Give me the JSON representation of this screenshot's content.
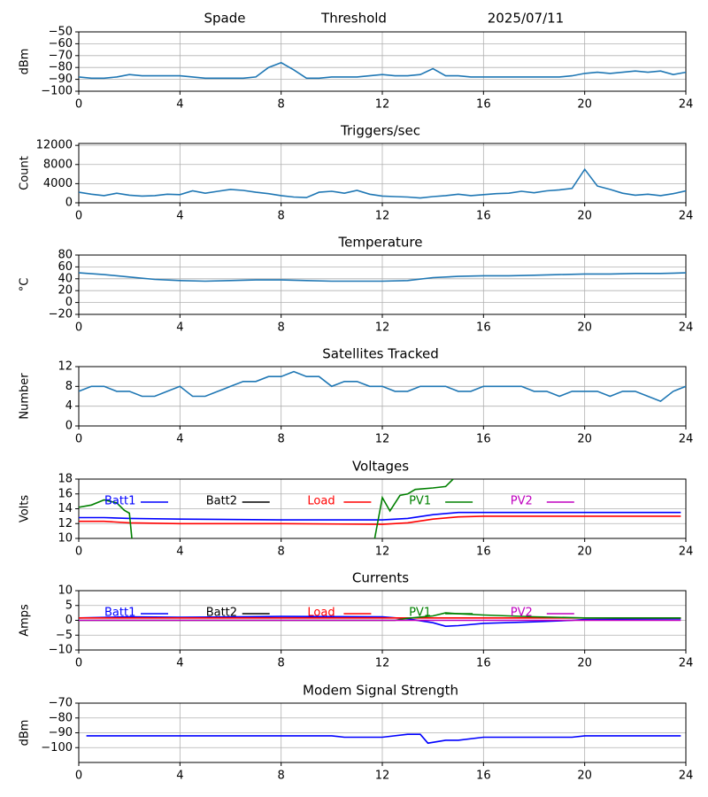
{
  "chart_data": [
    {
      "type": "line",
      "titles": [
        "Spade",
        "Threshold",
        "2025/07/11"
      ],
      "ylabel": "dBm",
      "color": "#1f77b4",
      "grid": true,
      "x": [
        0,
        0.5,
        1,
        1.5,
        2,
        2.5,
        3,
        3.5,
        4,
        4.5,
        5,
        5.5,
        6,
        6.5,
        7,
        7.5,
        8,
        8.5,
        9,
        9.5,
        10,
        10.5,
        11,
        11.5,
        12,
        12.5,
        13,
        13.5,
        14,
        14.5,
        15,
        15.5,
        16,
        16.5,
        17,
        17.5,
        18,
        18.5,
        19,
        19.5,
        20,
        20.5,
        21,
        21.5,
        22,
        22.5,
        23,
        23.5,
        24
      ],
      "values": [
        -88,
        -89,
        -89,
        -88,
        -86,
        -87,
        -87,
        -87,
        -87,
        -88,
        -89,
        -89,
        -89,
        -89,
        -88,
        -80,
        -76,
        -82,
        -89,
        -89,
        -88,
        -88,
        -88,
        -87,
        -86,
        -87,
        -87,
        -86,
        -81,
        -87,
        -87,
        -88,
        -88,
        -88,
        -88,
        -88,
        -88,
        -88,
        -88,
        -87,
        -85,
        -84,
        -85,
        -84,
        -83,
        -84,
        -83,
        -86,
        -84
      ],
      "xlim": [
        0,
        24
      ],
      "xticks": [
        0,
        4,
        8,
        12,
        16,
        20,
        24
      ],
      "ylim": [
        -100,
        -50
      ],
      "yticks": [
        {
          "value": -50,
          "label": "−50"
        },
        {
          "value": -60,
          "label": "−60"
        },
        {
          "value": -70,
          "label": "−70"
        },
        {
          "value": -80,
          "label": "−80"
        },
        {
          "value": -90,
          "label": "−90"
        },
        {
          "value": -100,
          "label": "−100"
        }
      ]
    },
    {
      "type": "line",
      "title": "Triggers/sec",
      "ylabel": "Count",
      "color": "#1f77b4",
      "grid": true,
      "x": [
        0,
        0.5,
        1,
        1.5,
        2,
        2.5,
        3,
        3.5,
        4,
        4.5,
        5,
        5.5,
        6,
        6.5,
        7,
        7.5,
        8,
        8.5,
        9,
        9.5,
        10,
        10.5,
        11,
        11.5,
        12,
        12.5,
        13,
        13.5,
        14,
        14.5,
        15,
        15.5,
        16,
        16.5,
        17,
        17.5,
        18,
        18.5,
        19,
        19.5,
        20,
        20.5,
        21,
        21.5,
        22,
        22.5,
        23,
        23.5,
        24
      ],
      "values": [
        2200,
        1800,
        1500,
        2000,
        1600,
        1400,
        1500,
        1800,
        1700,
        2500,
        2000,
        2400,
        2800,
        2600,
        2200,
        1900,
        1500,
        1200,
        1100,
        2200,
        2400,
        2000,
        2600,
        1800,
        1400,
        1300,
        1200,
        1000,
        1300,
        1500,
        1800,
        1500,
        1700,
        1900,
        2000,
        2400,
        2100,
        2500,
        2700,
        3000,
        7000,
        3500,
        2800,
        2000,
        1600,
        1800,
        1500,
        1900,
        2500
      ],
      "xlim": [
        0,
        24
      ],
      "xticks": [
        0,
        4,
        8,
        12,
        16,
        20,
        24
      ],
      "ylim": [
        0,
        12400
      ],
      "yticks": [
        0,
        4000,
        8000,
        12000
      ]
    },
    {
      "type": "line",
      "title": "Temperature",
      "ylabel": "°C",
      "color": "#1f77b4",
      "grid": true,
      "x": [
        0,
        1,
        2,
        3,
        4,
        5,
        6,
        7,
        8,
        9,
        10,
        11,
        12,
        13,
        14,
        15,
        16,
        17,
        18,
        19,
        20,
        21,
        22,
        23,
        24
      ],
      "values": [
        50,
        47,
        43,
        39,
        37,
        36,
        37,
        38,
        38,
        37,
        36,
        36,
        36,
        37,
        42,
        44,
        45,
        45,
        46,
        47,
        48,
        48,
        49,
        49,
        50
      ],
      "xlim": [
        0,
        24
      ],
      "xticks": [
        0,
        4,
        8,
        12,
        16,
        20,
        24
      ],
      "ylim": [
        -20,
        80
      ],
      "yticks": [
        {
          "value": -20,
          "label": "−20"
        },
        0,
        20,
        40,
        60,
        80
      ]
    },
    {
      "type": "line",
      "title": "Satellites Tracked",
      "ylabel": "Number",
      "color": "#1f77b4",
      "grid": true,
      "x": [
        0,
        0.5,
        1,
        1.5,
        2,
        2.5,
        3,
        3.5,
        4,
        4.5,
        5,
        5.5,
        6,
        6.5,
        7,
        7.5,
        8,
        8.5,
        9,
        9.5,
        10,
        10.5,
        11,
        11.5,
        12,
        12.5,
        13,
        13.5,
        14,
        14.5,
        15,
        15.5,
        16,
        16.5,
        17,
        17.5,
        18,
        18.5,
        19,
        19.5,
        20,
        20.5,
        21,
        21.5,
        22,
        22.5,
        23,
        23.5,
        24
      ],
      "values": [
        7,
        8,
        8,
        7,
        7,
        6,
        6,
        7,
        8,
        6,
        6,
        7,
        8,
        9,
        9,
        10,
        10,
        11,
        10,
        10,
        8,
        9,
        9,
        8,
        8,
        7,
        7,
        8,
        8,
        8,
        7,
        7,
        8,
        8,
        8,
        8,
        7,
        7,
        6,
        7,
        7,
        7,
        6,
        7,
        7,
        6,
        5,
        7,
        8
      ],
      "xlim": [
        0,
        24
      ],
      "xticks": [
        0,
        4,
        8,
        12,
        16,
        20,
        24
      ],
      "ylim": [
        0,
        12
      ],
      "yticks": [
        0,
        4,
        8,
        12
      ]
    },
    {
      "type": "line",
      "title": "Voltages",
      "ylabel": "Volts",
      "grid": true,
      "series": [
        {
          "name": "Batt1",
          "color": "#0000ff",
          "x": [
            0,
            1,
            2,
            4,
            8,
            12,
            13,
            14,
            15,
            16,
            20,
            23.8
          ],
          "values": [
            12.8,
            12.8,
            12.7,
            12.6,
            12.5,
            12.5,
            12.7,
            13.2,
            13.5,
            13.5,
            13.5,
            13.5
          ]
        },
        {
          "name": "Batt2",
          "color": "#000000",
          "x": [
            0,
            23.8
          ],
          "values": [
            null,
            null
          ]
        },
        {
          "name": "Load",
          "color": "#ff0000",
          "x": [
            0,
            1,
            2,
            4,
            8,
            12,
            13,
            14,
            15,
            16,
            20,
            23.8
          ],
          "values": [
            12.3,
            12.3,
            12.1,
            12.0,
            12.0,
            11.9,
            12.1,
            12.6,
            12.9,
            13.0,
            13.0,
            13.0
          ]
        },
        {
          "name": "PV1",
          "color": "#008000",
          "x": [
            0,
            0.5,
            1,
            1.5,
            1.8,
            2,
            2.1,
            7,
            11.7,
            12,
            12.3,
            12.7,
            13,
            13.3,
            14,
            14.5,
            14.8
          ],
          "values": [
            14.2,
            14.5,
            15.2,
            14.8,
            13.8,
            13.4,
            10,
            null,
            10,
            15.5,
            13.7,
            15.8,
            16,
            16.6,
            16.8,
            17,
            18
          ]
        },
        {
          "name": "PV2",
          "color": "#bf00bf",
          "x": [
            0,
            23.8
          ],
          "values": [
            null,
            null
          ]
        }
      ],
      "xlim": [
        0,
        24
      ],
      "xticks": [
        0,
        4,
        8,
        12,
        16,
        20,
        24
      ],
      "ylim": [
        10,
        18
      ],
      "yticks": [
        10,
        12,
        14,
        16,
        18
      ]
    },
    {
      "type": "line",
      "title": "Currents",
      "ylabel": "Amps",
      "grid": true,
      "series": [
        {
          "name": "Batt1",
          "color": "#0000ff",
          "x": [
            0,
            2,
            4,
            8,
            12,
            13,
            14,
            14.5,
            15,
            16,
            18,
            19.5,
            20,
            23.8
          ],
          "values": [
            0.8,
            1.2,
            1.0,
            1.3,
            1.2,
            0.5,
            -0.8,
            -2,
            -1.8,
            -1,
            -0.5,
            0,
            0.3,
            0.5
          ]
        },
        {
          "name": "Batt2",
          "color": "#000000",
          "x": [
            0,
            23.8
          ],
          "values": [
            null,
            null
          ]
        },
        {
          "name": "Load",
          "color": "#ff0000",
          "x": [
            0,
            23.8
          ],
          "values": [
            0.8,
            0.8
          ]
        },
        {
          "name": "PV1",
          "color": "#008000",
          "x": [
            0,
            12.5,
            13,
            14,
            14.5,
            15,
            16,
            18,
            20,
            23.8
          ],
          "values": [
            0,
            0,
            0.7,
            1.5,
            2.5,
            2.2,
            1.8,
            1.2,
            0.8,
            0.8
          ]
        },
        {
          "name": "PV2",
          "color": "#bf00bf",
          "x": [
            0,
            23.8
          ],
          "values": [
            0,
            0
          ]
        }
      ],
      "xlim": [
        0,
        24
      ],
      "xticks": [
        0,
        4,
        8,
        12,
        16,
        20,
        24
      ],
      "ylim": [
        -10,
        10
      ],
      "yticks": [
        {
          "value": -10,
          "label": "−10"
        },
        {
          "value": -5,
          "label": "−5"
        },
        0,
        5,
        10
      ]
    },
    {
      "type": "line",
      "title": "Modem Signal Strength",
      "ylabel": "dBm",
      "color": "#0000ff",
      "grid": true,
      "x": [
        0.3,
        2,
        4,
        8,
        10,
        10.5,
        12,
        13,
        13.5,
        13.8,
        14.5,
        15,
        16,
        19.5,
        20,
        23.8
      ],
      "values": [
        -92,
        -92,
        -92,
        -92,
        -92,
        -93,
        -93,
        -91,
        -91,
        -97,
        -95,
        -95,
        -93,
        -93,
        -92,
        -92
      ],
      "xlim": [
        0,
        24
      ],
      "xticks": [
        0,
        4,
        8,
        12,
        16,
        20,
        24
      ],
      "ylim": [
        -110,
        -70
      ],
      "yticks": [
        {
          "value": -70,
          "label": "−70"
        },
        {
          "value": -80,
          "label": "−80"
        },
        {
          "value": -90,
          "label": "−90"
        },
        {
          "value": -100,
          "label": "−100"
        }
      ]
    }
  ]
}
